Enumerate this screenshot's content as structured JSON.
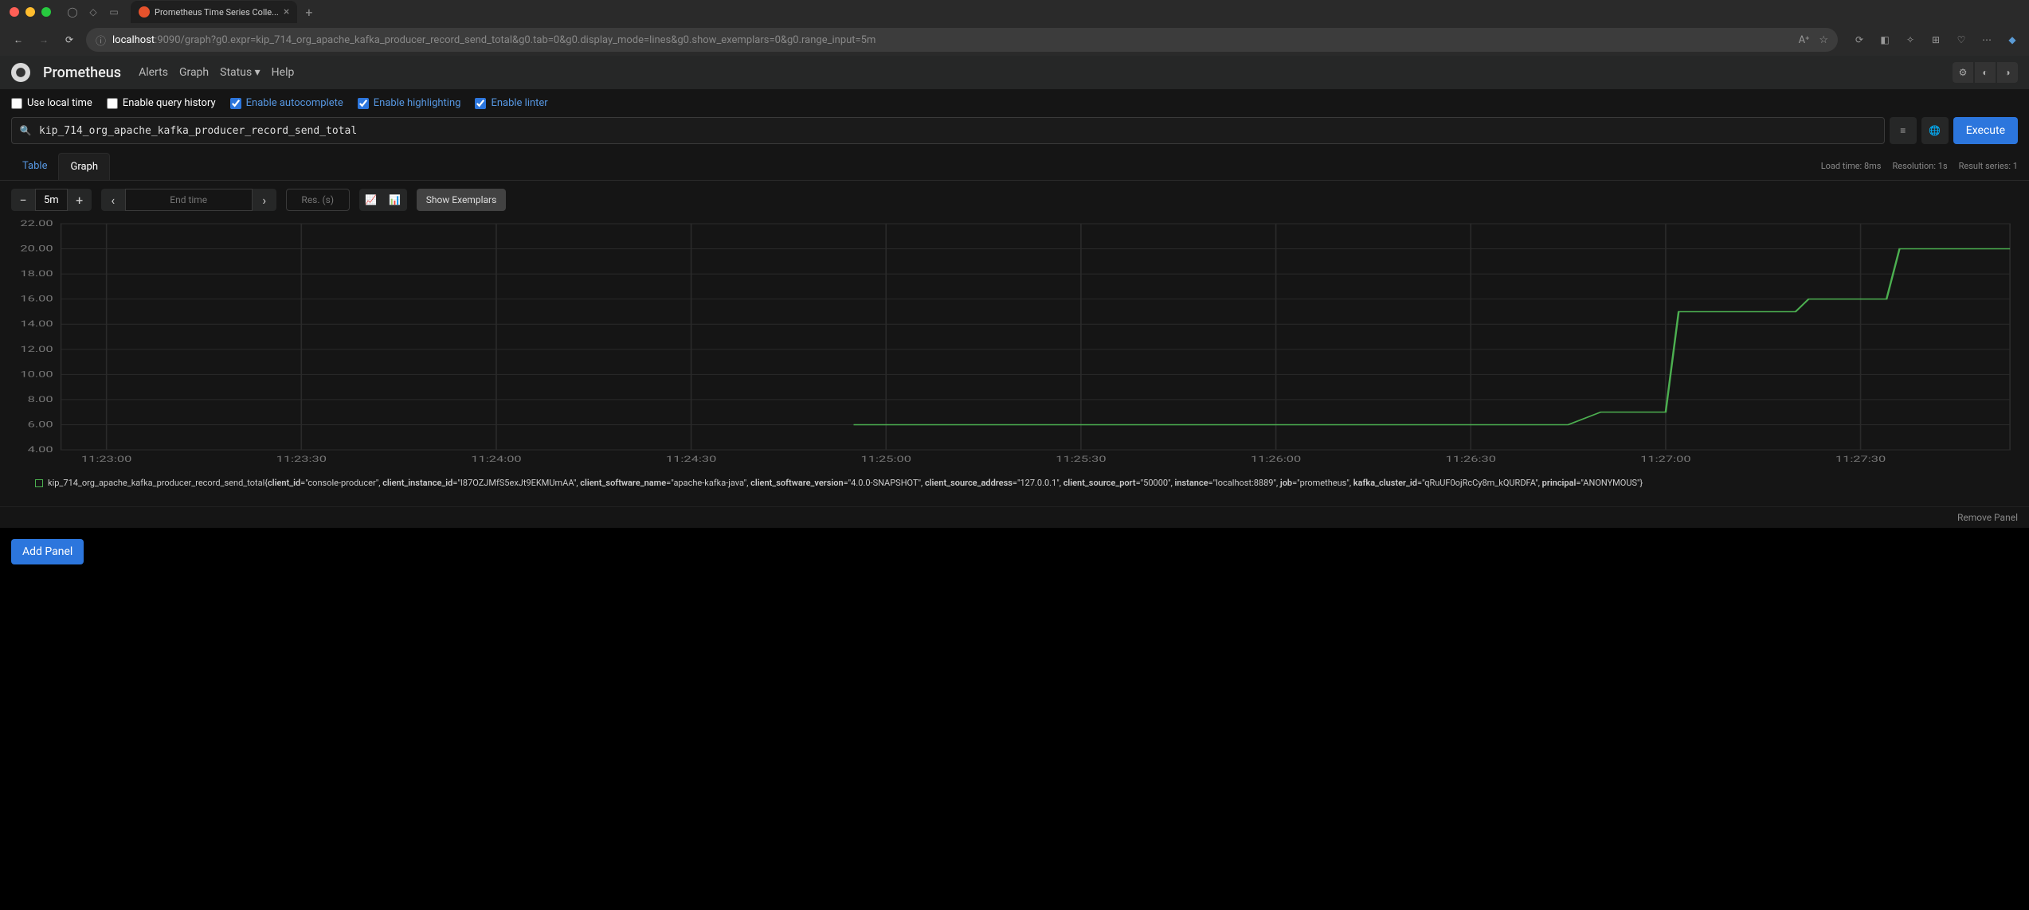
{
  "browser": {
    "tab_title": "Prometheus Time Series Colle...",
    "url_host": "localhost",
    "url_rest": ":9090/graph?g0.expr=kip_714_org_apache_kafka_producer_record_send_total&g0.tab=0&g0.display_mode=lines&g0.show_exemplars=0&g0.range_input=5m"
  },
  "header": {
    "title": "Prometheus",
    "nav": {
      "alerts": "Alerts",
      "graph": "Graph",
      "status": "Status",
      "help": "Help"
    }
  },
  "options": {
    "local_time": "Use local time",
    "query_history": "Enable query history",
    "autocomplete": "Enable autocomplete",
    "highlighting": "Enable highlighting",
    "linter": "Enable linter"
  },
  "query": {
    "expression": "kip_714_org_apache_kafka_producer_record_send_total",
    "execute": "Execute"
  },
  "tabs": {
    "table": "Table",
    "graph": "Graph"
  },
  "stats": {
    "load": "Load time: 8ms",
    "resolution": "Resolution: 1s",
    "series": "Result series: 1"
  },
  "controls": {
    "range": "5m",
    "end_time_placeholder": "End time",
    "res_placeholder": "Res. (s)",
    "show_exemplars": "Show Exemplars"
  },
  "chart": {
    "type": "line",
    "line_color": "#4caf50",
    "grid_color": "#2a2a2a",
    "background": "#151515",
    "ylim": [
      4,
      22
    ],
    "ytick_step": 2,
    "y_ticks": [
      "22.00",
      "20.00",
      "18.00",
      "16.00",
      "14.00",
      "12.00",
      "10.00",
      "8.00",
      "6.00",
      "4.00"
    ],
    "x_ticks": [
      "11:23:00",
      "11:23:30",
      "11:24:00",
      "11:24:30",
      "11:25:00",
      "11:25:30",
      "11:26:00",
      "11:26:30",
      "11:27:00",
      "11:27:30"
    ],
    "xlim": [
      "11:22:53",
      "11:27:53"
    ],
    "series_points": [
      {
        "t": "11:24:55",
        "v": 6
      },
      {
        "t": "11:26:45",
        "v": 6
      },
      {
        "t": "11:26:50",
        "v": 7
      },
      {
        "t": "11:27:00",
        "v": 7
      },
      {
        "t": "11:27:02",
        "v": 15
      },
      {
        "t": "11:27:20",
        "v": 15
      },
      {
        "t": "11:27:22",
        "v": 16
      },
      {
        "t": "11:27:34",
        "v": 16
      },
      {
        "t": "11:27:36",
        "v": 20
      },
      {
        "t": "11:27:53",
        "v": 20
      }
    ]
  },
  "legend": {
    "metric": "kip_714_org_apache_kafka_producer_record_send_total",
    "labels": {
      "client_id": "console-producer",
      "client_instance_id": "I87OZJMfS5exJt9EKMUmAA",
      "client_software_name": "apache-kafka-java",
      "client_software_version": "4.0.0-SNAPSHOT",
      "client_source_address": "127.0.0.1",
      "client_source_port": "50000",
      "instance": "localhost:8889",
      "job": "prometheus",
      "kafka_cluster_id": "qRuUF0ojRcCy8m_kQURDFA",
      "principal": "ANONYMOUS"
    }
  },
  "footer": {
    "remove_panel": "Remove Panel",
    "add_panel": "Add Panel"
  }
}
